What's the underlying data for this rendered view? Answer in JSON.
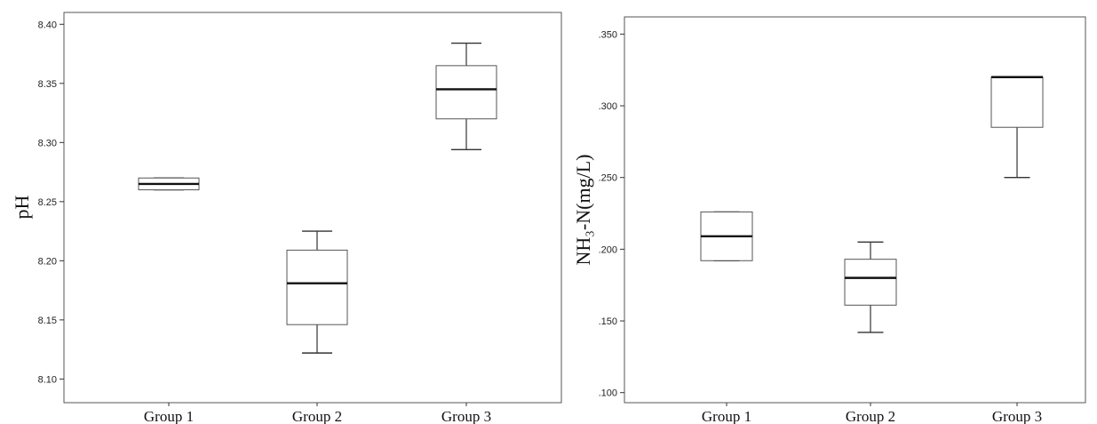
{
  "chart_data": [
    {
      "type": "box",
      "ylabel": "pH",
      "ylim": [
        8.08,
        8.41
      ],
      "yticks": [
        "8.10",
        "8.15",
        "8.20",
        "8.25",
        "8.30",
        "8.35",
        "8.40"
      ],
      "yticks_values": [
        8.1,
        8.15,
        8.2,
        8.25,
        8.3,
        8.35,
        8.4
      ],
      "categories": [
        "Group 1",
        "Group 2",
        "Group 3"
      ],
      "boxes": [
        {
          "min": 8.26,
          "q1": 8.26,
          "median": 8.265,
          "q3": 8.27,
          "max": 8.27
        },
        {
          "min": 8.122,
          "q1": 8.146,
          "median": 8.181,
          "q3": 8.209,
          "max": 8.225
        },
        {
          "min": 8.294,
          "q1": 8.32,
          "median": 8.345,
          "q3": 8.365,
          "max": 8.384
        }
      ]
    },
    {
      "type": "box",
      "ylabel": "NH₃-N(mg/L)",
      "ylim": [
        0.093,
        0.362
      ],
      "yticks": [
        ".100",
        ".150",
        ".200",
        ".250",
        ".300",
        ".350"
      ],
      "yticks_values": [
        0.1,
        0.15,
        0.2,
        0.25,
        0.3,
        0.35
      ],
      "categories": [
        "Group 1",
        "Group 2",
        "Group 3"
      ],
      "boxes": [
        {
          "min": 0.192,
          "q1": 0.192,
          "median": 0.209,
          "q3": 0.226,
          "max": 0.226
        },
        {
          "min": 0.142,
          "q1": 0.161,
          "median": 0.18,
          "q3": 0.193,
          "max": 0.205
        },
        {
          "min": 0.25,
          "q1": 0.285,
          "median": 0.32,
          "q3": 0.32,
          "max": 0.32
        }
      ]
    }
  ]
}
